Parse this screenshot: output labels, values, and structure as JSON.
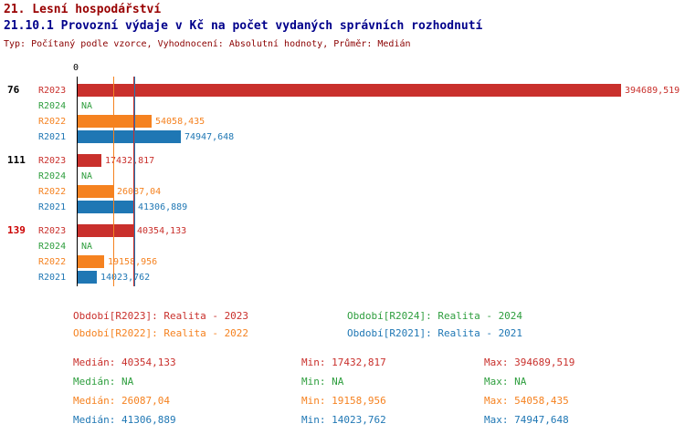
{
  "header": {
    "title": "21. Lesní hospodářství",
    "subtitle": "21.10.1 Provozní výdaje v Kč na počet vydaných správních rozhodnutí",
    "meta": "Typ: Počítaný podle vzorce, Vyhodnocení: Absolutní hodnoty, Průměr: Medián"
  },
  "chart_data": {
    "type": "bar",
    "orientation": "horizontal",
    "x_axis": {
      "zero_label": "0",
      "max": 394689.519
    },
    "series_colors": {
      "R2023": "#c9302c",
      "R2024": "#2e9e3e",
      "R2022": "#f58220",
      "R2021": "#1f77b4"
    },
    "groups": [
      {
        "label": "76",
        "label_color": "#000000",
        "bars": [
          {
            "series": "R2023",
            "value": 394689.519,
            "display": "394689,519"
          },
          {
            "series": "R2024",
            "value": null,
            "display": "NA"
          },
          {
            "series": "R2022",
            "value": 54058.435,
            "display": "54058,435"
          },
          {
            "series": "R2021",
            "value": 74947.648,
            "display": "74947,648"
          }
        ]
      },
      {
        "label": "111",
        "label_color": "#000000",
        "bars": [
          {
            "series": "R2023",
            "value": 17432.817,
            "display": "17432,817"
          },
          {
            "series": "R2024",
            "value": null,
            "display": "NA"
          },
          {
            "series": "R2022",
            "value": 26087.04,
            "display": "26087,04"
          },
          {
            "series": "R2021",
            "value": 41306.889,
            "display": "41306,889"
          }
        ]
      },
      {
        "label": "139",
        "label_color": "#cc0000",
        "bars": [
          {
            "series": "R2023",
            "value": 40354.133,
            "display": "40354,133"
          },
          {
            "series": "R2024",
            "value": null,
            "display": "NA"
          },
          {
            "series": "R2022",
            "value": 19158.956,
            "display": "19158,956"
          },
          {
            "series": "R2021",
            "value": 14023.762,
            "display": "14023,762"
          }
        ]
      }
    ],
    "median_lines": [
      {
        "series": "R2022",
        "value": 26087.04,
        "color": "#f58220"
      },
      {
        "series": "R2023",
        "value": 40354.133,
        "color": "#c9302c"
      },
      {
        "series": "R2021",
        "value": 41306.889,
        "color": "#1f77b4"
      }
    ]
  },
  "legend": [
    {
      "label": "Období[R2023]: Realita - 2023",
      "color": "#c9302c"
    },
    {
      "label": "Období[R2024]: Realita - 2024",
      "color": "#2e9e3e"
    },
    {
      "label": "Období[R2022]: Realita - 2022",
      "color": "#f58220"
    },
    {
      "label": "Období[R2021]: Realita - 2021",
      "color": "#1f77b4"
    }
  ],
  "stats": [
    {
      "color": "#c9302c",
      "median": "Medián: 40354,133",
      "min": "Min: 17432,817",
      "max": "Max: 394689,519"
    },
    {
      "color": "#2e9e3e",
      "median": "Medián: NA",
      "min": "Min: NA",
      "max": "Max: NA"
    },
    {
      "color": "#f58220",
      "median": "Medián: 26087,04",
      "min": "Min: 19158,956",
      "max": "Max: 54058,435"
    },
    {
      "color": "#1f77b4",
      "median": "Medián: 41306,889",
      "min": "Min: 14023,762",
      "max": "Max: 74947,648"
    }
  ]
}
